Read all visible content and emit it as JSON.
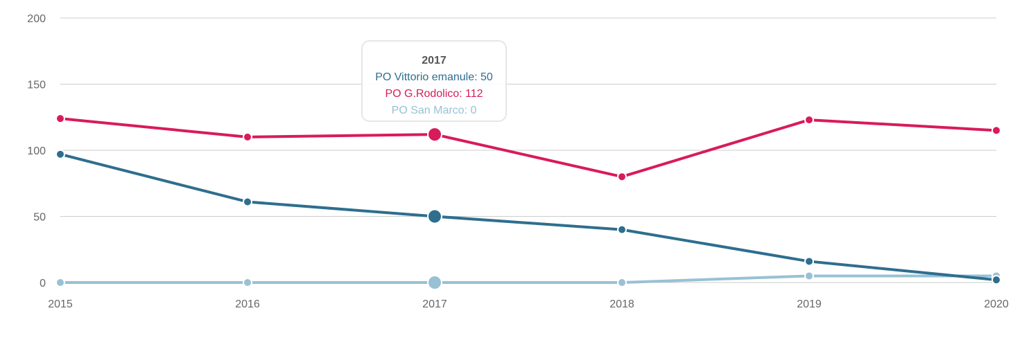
{
  "chart_data": {
    "type": "line",
    "title": "",
    "xlabel": "",
    "ylabel": "",
    "x": [
      "2015",
      "2016",
      "2017",
      "2018",
      "2019",
      "2020"
    ],
    "ylim": [
      0,
      200
    ],
    "yticks": [
      "0",
      "50",
      "100",
      "150",
      "200"
    ],
    "grid": true,
    "series": [
      {
        "name": "PO G.Rodolico",
        "color": "#d81b5a",
        "values": [
          124,
          110,
          112,
          80,
          123,
          115
        ]
      },
      {
        "name": "PO Vittorio emanule",
        "color": "#2e6e8e",
        "values": [
          97,
          61,
          50,
          40,
          16,
          2
        ]
      },
      {
        "name": "PO San Marco",
        "color": "#98c1d4",
        "values": [
          0,
          0,
          0,
          0,
          5,
          5
        ]
      }
    ],
    "tooltip": {
      "title": "2017",
      "highlight_index": 2,
      "lines": [
        "PO Vittorio emanule: 50",
        "PO G.Rodolico: 112",
        "PO San Marco: 0"
      ],
      "colors": [
        "#2e6e8e",
        "#d81b5a",
        "#98c1d4"
      ]
    }
  }
}
